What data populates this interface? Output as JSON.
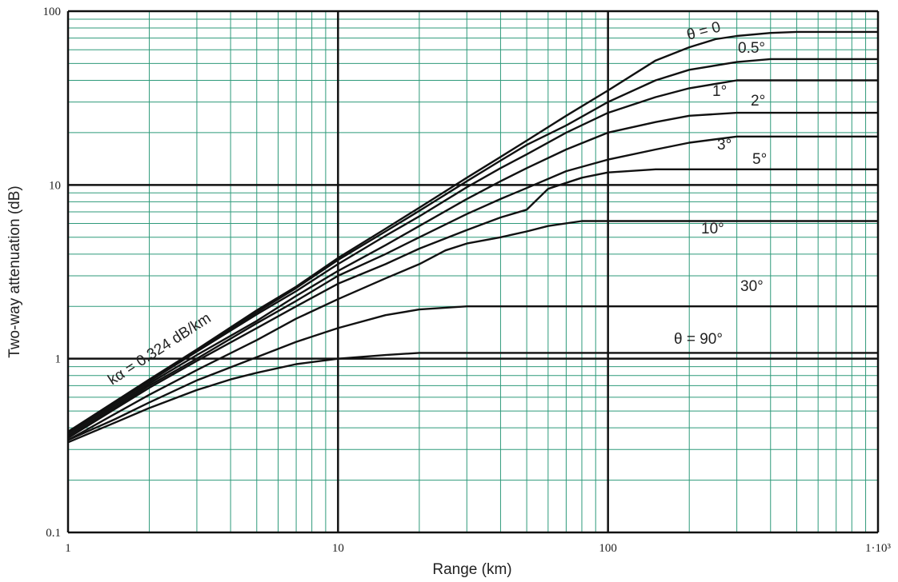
{
  "chart_data": {
    "type": "line",
    "title": "",
    "xlabel": "Range (km)",
    "ylabel": "Two-way attenuation (dB)",
    "xscale": "log",
    "yscale": "log",
    "xlim": [
      1,
      1000
    ],
    "ylim": [
      0.1,
      100
    ],
    "x_ticks": [
      "1",
      "10",
      "100",
      "1·10³"
    ],
    "y_ticks": [
      "0.1",
      "1",
      "10",
      "100"
    ],
    "grid": true,
    "grid_color": "#2e9a7a",
    "line_color": "#111111",
    "annotation": "kα = 0.324 dB/km",
    "series": [
      {
        "name": "θ = 0",
        "x": [
          1,
          2,
          3,
          5,
          7,
          10,
          15,
          20,
          30,
          40,
          50,
          70,
          100,
          150,
          200,
          250,
          300,
          400,
          500,
          700,
          1000
        ],
        "y": [
          0.38,
          0.76,
          1.13,
          1.9,
          2.6,
          3.8,
          5.6,
          7.4,
          11,
          14.5,
          18,
          25,
          35,
          52,
          62,
          69,
          72,
          75,
          76,
          76,
          76
        ]
      },
      {
        "name": "0.5°",
        "x": [
          1,
          2,
          3,
          5,
          7,
          10,
          15,
          20,
          30,
          40,
          50,
          70,
          100,
          150,
          200,
          300,
          400,
          1000
        ],
        "y": [
          0.38,
          0.75,
          1.12,
          1.85,
          2.55,
          3.7,
          5.4,
          7.1,
          10.5,
          13.8,
          17,
          22,
          30,
          40,
          46,
          51,
          53,
          53
        ]
      },
      {
        "name": "1°",
        "x": [
          1,
          2,
          3,
          5,
          7,
          10,
          15,
          20,
          30,
          40,
          50,
          70,
          100,
          150,
          200,
          300,
          1000
        ],
        "y": [
          0.37,
          0.74,
          1.1,
          1.8,
          2.45,
          3.5,
          5.1,
          6.6,
          9.7,
          12.5,
          15,
          20,
          26,
          32,
          36,
          40,
          40
        ]
      },
      {
        "name": "2°",
        "x": [
          1,
          2,
          3,
          5,
          7,
          10,
          15,
          20,
          30,
          40,
          50,
          70,
          100,
          150,
          200,
          300,
          1000
        ],
        "y": [
          0.36,
          0.72,
          1.05,
          1.65,
          2.3,
          3.2,
          4.5,
          5.8,
          8.3,
          10.5,
          12.5,
          16,
          20,
          23,
          25,
          26,
          26
        ]
      },
      {
        "name": "3°",
        "x": [
          1,
          2,
          3,
          5,
          7,
          10,
          15,
          20,
          30,
          40,
          50,
          70,
          100,
          150,
          200,
          300,
          1000
        ],
        "y": [
          0.35,
          0.7,
          1.0,
          1.6,
          2.15,
          3.0,
          4.0,
          5.0,
          6.8,
          8.3,
          9.6,
          12,
          14,
          16,
          17.5,
          19,
          19
        ]
      },
      {
        "name": "5°",
        "x": [
          1,
          2,
          3,
          5,
          7,
          10,
          15,
          20,
          30,
          40,
          50,
          60,
          80,
          100,
          150,
          1000
        ],
        "y": [
          0.35,
          0.68,
          0.97,
          1.5,
          2.0,
          2.7,
          3.5,
          4.3,
          5.5,
          6.5,
          7.2,
          9.5,
          11,
          11.8,
          12.3,
          12.3
        ]
      },
      {
        "name": "10°",
        "x": [
          1,
          2,
          3,
          5,
          7,
          10,
          15,
          20,
          25,
          30,
          40,
          50,
          60,
          80,
          1000
        ],
        "y": [
          0.34,
          0.62,
          0.86,
          1.28,
          1.7,
          2.2,
          2.9,
          3.5,
          4.2,
          4.6,
          5.0,
          5.4,
          5.8,
          6.2,
          6.2
        ]
      },
      {
        "name": "30°",
        "x": [
          1,
          1.5,
          2,
          3,
          5,
          7,
          10,
          15,
          20,
          30,
          1000
        ],
        "y": [
          0.34,
          0.45,
          0.56,
          0.75,
          1.02,
          1.25,
          1.5,
          1.78,
          1.92,
          2.0,
          2.0
        ]
      },
      {
        "name": "θ = 90°",
        "x": [
          1,
          1.5,
          2,
          3,
          4,
          5,
          7,
          10,
          15,
          20,
          1000
        ],
        "y": [
          0.33,
          0.43,
          0.52,
          0.66,
          0.76,
          0.83,
          0.93,
          1.0,
          1.05,
          1.08,
          1.08
        ]
      }
    ]
  }
}
